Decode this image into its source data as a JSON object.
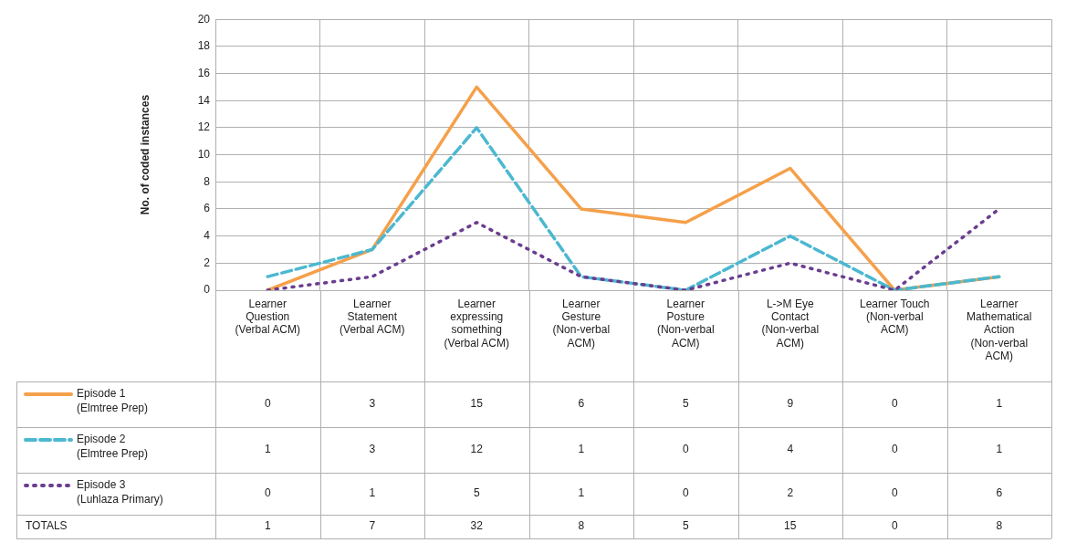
{
  "chart_data": {
    "type": "line",
    "ylabel": "No. of coded instances",
    "categories": [
      "Learner Question (Verbal ACM)",
      "Learner Statement (Verbal ACM)",
      "Learner expressing something (Verbal ACM)",
      "Learner Gesture (Non-verbal ACM)",
      "Learner Posture (Non-verbal ACM)",
      "L->M Eye Contact (Non-verbal ACM)",
      "Learner Touch (Non-verbal ACM)",
      "Learner Mathematical Action (Non-verbal ACM)"
    ],
    "series": [
      {
        "name": "Episode 1 (Elmtree Prep)",
        "color": "#f5a04a",
        "line_style": "solid",
        "values": [
          0,
          3,
          15,
          6,
          5,
          9,
          0,
          1
        ]
      },
      {
        "name": "Episode 2 (Elmtree Prep)",
        "color": "#4bb8d0",
        "line_style": "dashed",
        "values": [
          1,
          3,
          12,
          1,
          0,
          4,
          0,
          1
        ]
      },
      {
        "name": "Episode 3 (Luhlaza Primary)",
        "color": "#6a3d8f",
        "line_style": "dotted",
        "values": [
          0,
          1,
          5,
          1,
          0,
          2,
          0,
          6
        ]
      }
    ],
    "totals": [
      "1",
      "7",
      "32",
      "8",
      "5",
      "15",
      "0",
      "8"
    ],
    "annotations": [
      "TOTALS"
    ],
    "ylim": [
      0,
      20
    ],
    "yticks": [
      0,
      2,
      4,
      6,
      8,
      10,
      12,
      14,
      16,
      18,
      20
    ],
    "grid": true,
    "legend": "bottom left",
    "marker": "none",
    "data_labels": true
  }
}
